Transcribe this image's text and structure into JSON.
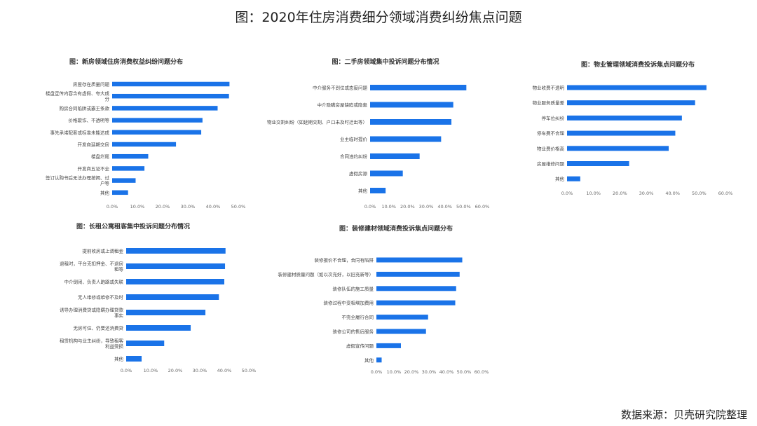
{
  "title": "图：2020年住房消费细分领域消费纠纷焦点问题",
  "source": "数据来源：贝壳研究院整理",
  "bar_color": "#1a73e8",
  "chart_data": [
    {
      "type": "bar",
      "orientation": "horizontal",
      "title": "图：新房领域住房消费权益纠纷问题分布",
      "categories": [
        "房屋存在质量问题",
        "楼盘宣传内容含有虚假、夸大成分",
        "购房合同陷阱或霸王条款",
        "价格欺诈、不透明等",
        "事先承诺配套或标准未能达成",
        "开发商延期交房",
        "楼盘烂尾",
        "开发商五证不全",
        "签订认购书后无法办理按揭、过户等",
        "其他"
      ],
      "values": [
        46.5,
        46.3,
        41.8,
        35.8,
        35.3,
        25.3,
        14.3,
        12.8,
        9.3,
        6.3
      ],
      "xticks": [
        "0.0%",
        "10.0%",
        "20.0%",
        "30.0%",
        "40.0%",
        "50.0%"
      ],
      "xlim": [
        0,
        50
      ]
    },
    {
      "type": "bar",
      "orientation": "horizontal",
      "title": "图：二手房领域集中投诉问题分布情况",
      "categories": [
        "中介服务不到位或态度问题",
        "中介隐瞒房屋缺陷或隐患",
        "物业交割纠纷（如延期交割、户口未及时迁出等）",
        "业主临时提价",
        "合同违约纠纷",
        "虚假房源",
        "其他"
      ],
      "values": [
        51.5,
        44.5,
        43.5,
        38.0,
        26.5,
        17.5,
        8.3
      ],
      "xticks": [
        "0.0%",
        "10.0%",
        "20.0%",
        "30.0%",
        "40.0%",
        "50.0%",
        "60.0%"
      ],
      "xlim": [
        0,
        60
      ]
    },
    {
      "type": "bar",
      "orientation": "horizontal",
      "title": "图：物业管理领域消费投诉焦点问题分布",
      "categories": [
        "物业收费不透明",
        "物业服务质量差",
        "停车位纠纷",
        "停车费不合理",
        "物业费价格高",
        "房屋维修问题",
        "其他"
      ],
      "values": [
        52.8,
        48.5,
        43.5,
        41.0,
        38.5,
        23.5,
        5.0
      ],
      "xticks": [
        "0.0%",
        "10.0%",
        "20.0%",
        "30.0%",
        "40.0%",
        "50.0%",
        "60.0%"
      ],
      "xlim": [
        0,
        60
      ]
    },
    {
      "type": "bar",
      "orientation": "horizontal",
      "title": "图：长租公寓租客集中投诉问题分布情况",
      "categories": [
        "提前收房或上调租金",
        "退租时，平台克扣押金、不退房租等",
        "中介倒闭、负责人跑路或失联",
        "无人维修或维修不及时",
        "诱导办理消费贷或隐瞒办理贷款事实",
        "无房可住、仍要还消费贷",
        "租赁机构与业主纠纷，导致租客利益受损",
        "其他"
      ],
      "values": [
        40.5,
        40.3,
        40.0,
        37.8,
        32.3,
        26.3,
        15.5,
        6.3
      ],
      "xticks": [
        "0.0%",
        "10.0%",
        "20.0%",
        "30.0%",
        "40.0%",
        "50.0%"
      ],
      "xlim": [
        0,
        50
      ]
    },
    {
      "type": "bar",
      "orientation": "horizontal",
      "title": "图：装修建材领域消费投诉焦点问题分布",
      "categories": [
        "装修报价不合理，合同有陷阱",
        "装修建材质量问题（如以次充好，以旧充新等）",
        "装修队伍的施工质量",
        "装修过程中变相增加费用",
        "不完全履行合同",
        "装修公司的售后服务",
        "虚假宣传问题",
        "其他"
      ],
      "values": [
        49.0,
        47.5,
        45.5,
        45.0,
        29.5,
        28.3,
        14.0,
        3.0
      ],
      "xticks": [
        "0.0%",
        "10.0%",
        "20.0%",
        "30.0%",
        "40.0%",
        "50.0%",
        "60.0%"
      ],
      "xlim": [
        0,
        60
      ]
    }
  ]
}
